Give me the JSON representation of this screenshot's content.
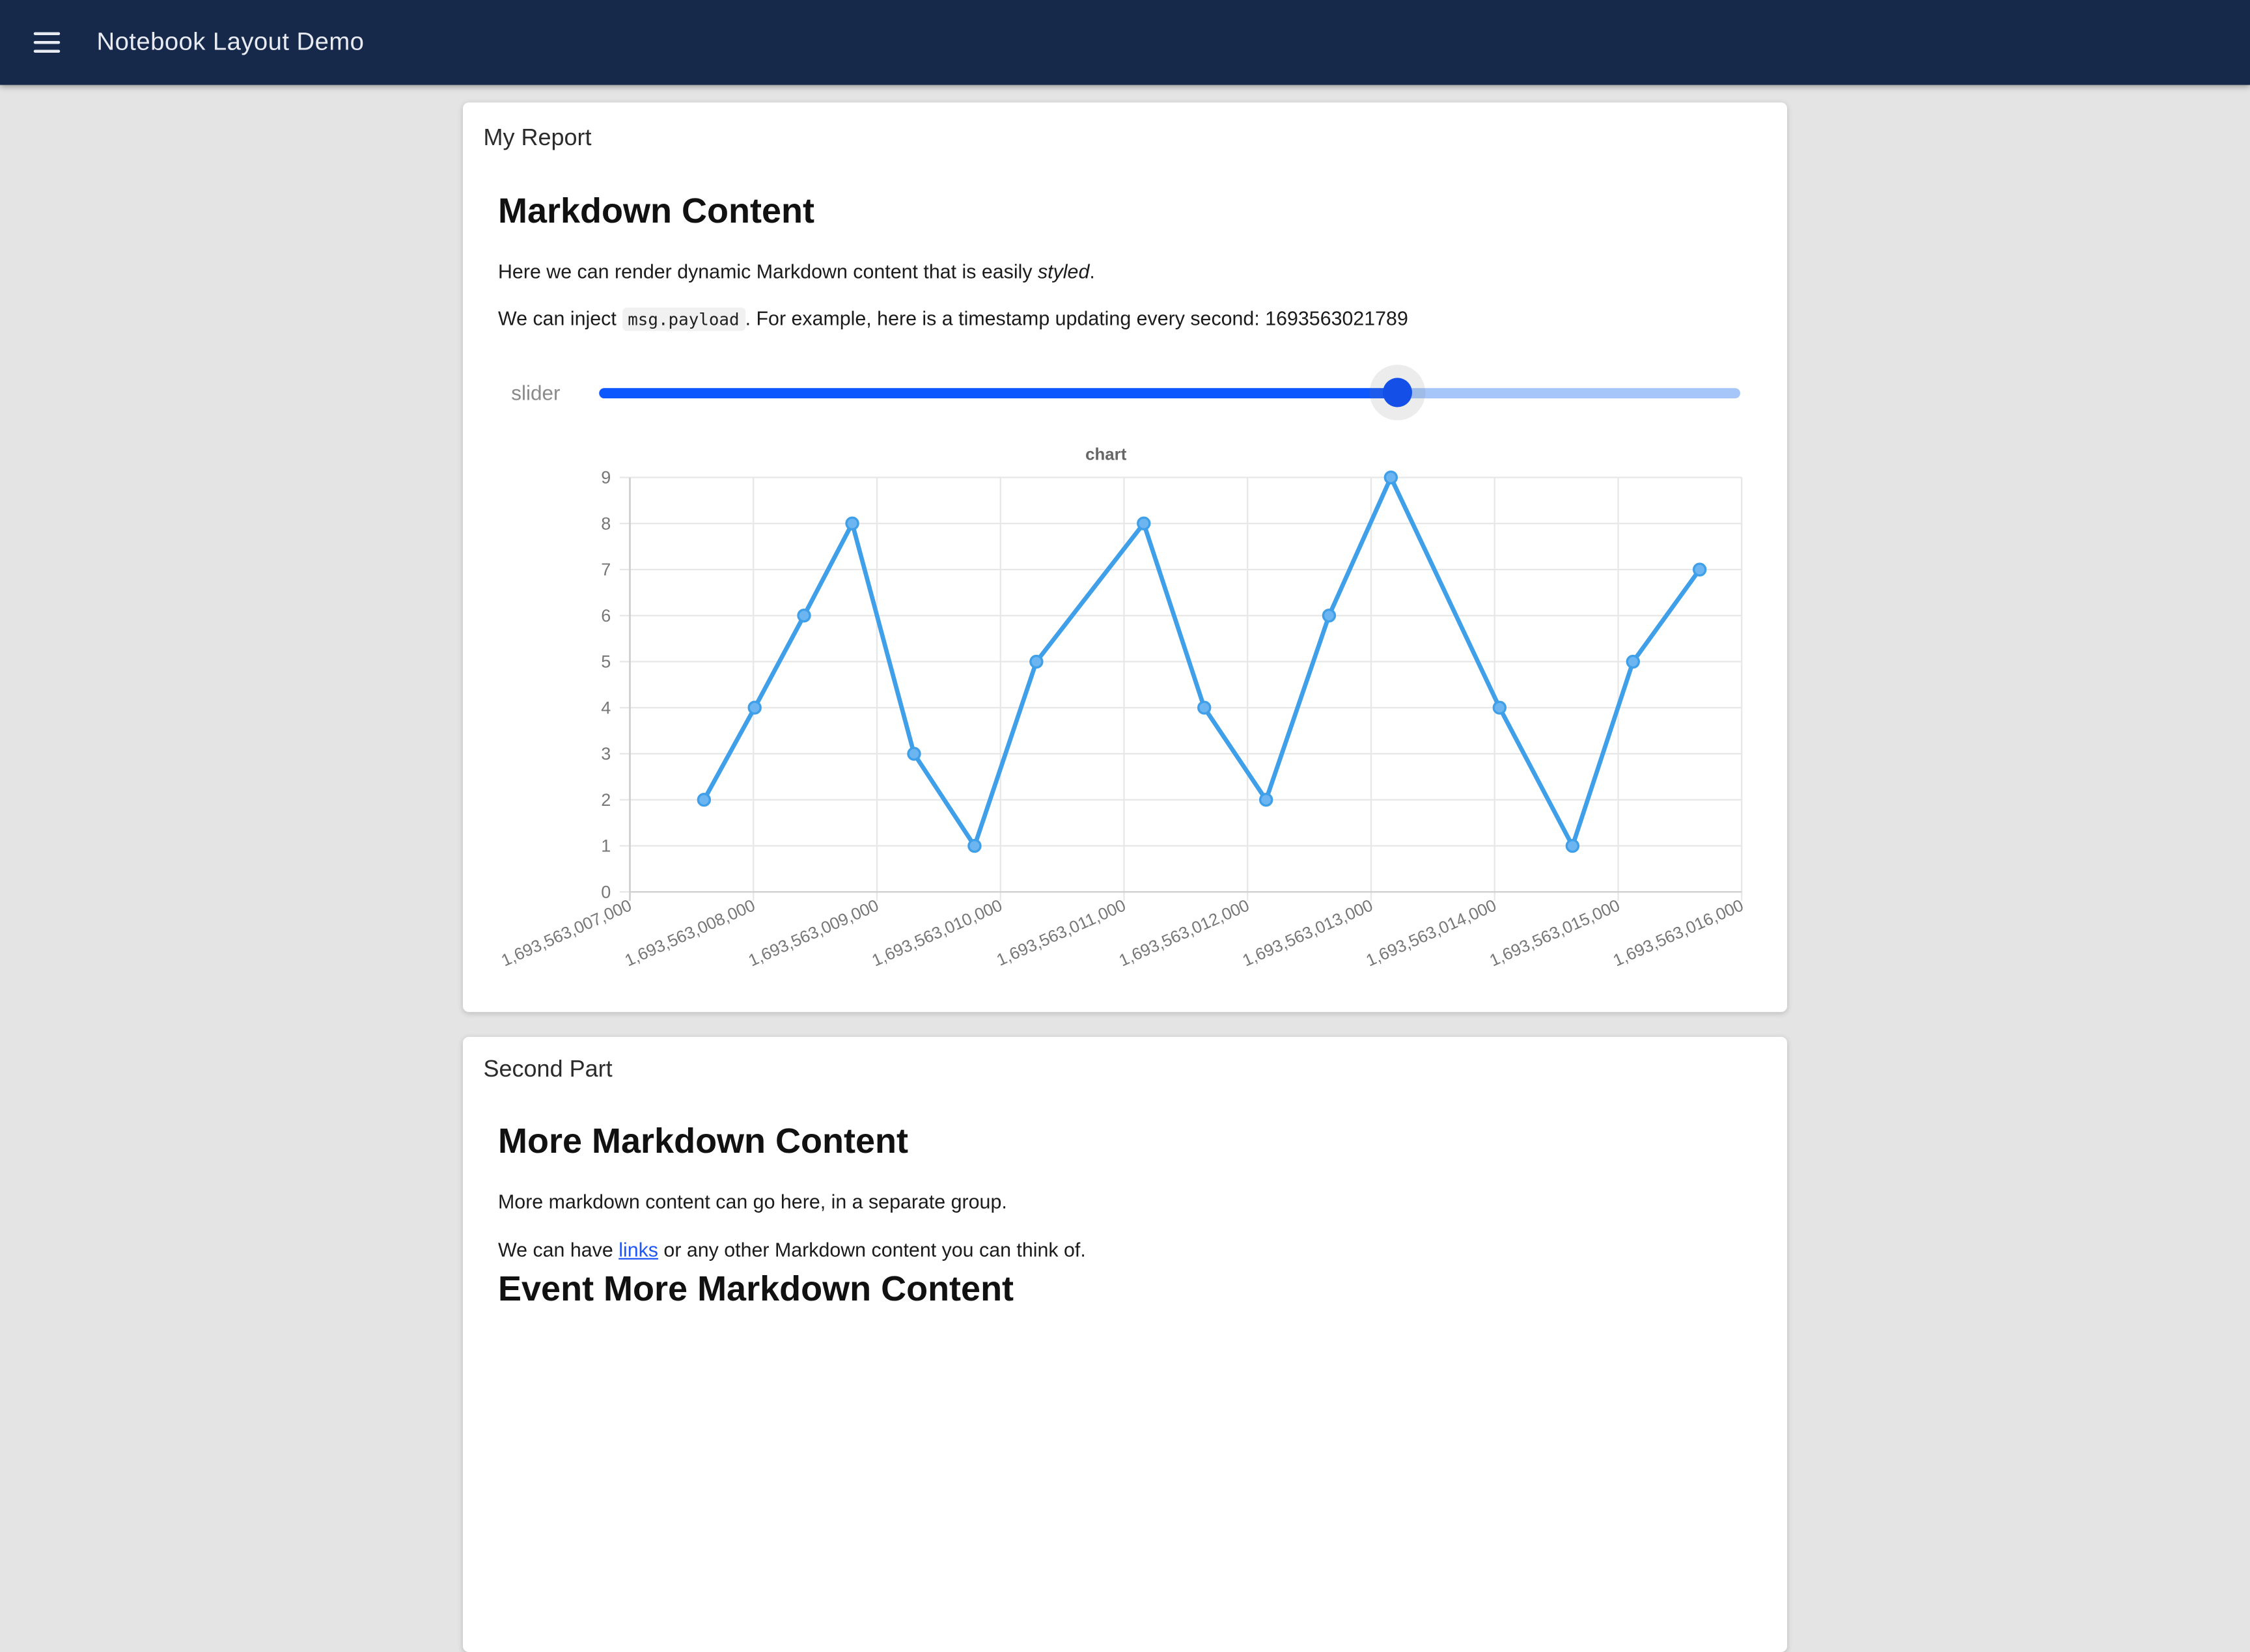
{
  "header": {
    "title": "Notebook Layout Demo",
    "bg_color": "#16294A",
    "text_color": "#E8EBF1"
  },
  "page": {
    "bg_color": "#E4E4E4"
  },
  "report_card": {
    "title": "My Report",
    "heading": "Markdown Content",
    "para1": {
      "pre": "Here we can render dynamic Markdown content that is easily ",
      "italic": "styled",
      "post": "."
    },
    "para2": {
      "pre": "We can inject ",
      "code": "msg.payload",
      "mid": ". For example, here is a timestamp updating every second: ",
      "timestamp": "1693563021789"
    },
    "slider": {
      "label": "slider",
      "percent": 70,
      "fill_color": "#0D57FF",
      "track_color": "#A6C6FA",
      "thumb_color": "#1450E8"
    }
  },
  "chart_data": {
    "type": "line",
    "title": "chart",
    "line_color": "#3F9FE8",
    "point_fill": "#6CB5F0",
    "grid_color": "#E7E7E7",
    "axis_color": "#CFCFCF",
    "tick_color": "#777777",
    "title_color": "#666666",
    "x_min": 1693563007000,
    "x_max": 1693563016000,
    "y_min": 0,
    "y_max": 9,
    "y_ticks": [
      0,
      1,
      2,
      3,
      4,
      5,
      6,
      7,
      8,
      9
    ],
    "x_tick_labels": [
      "1,693,563,007,000",
      "1,693,563,008,000",
      "1,693,563,009,000",
      "1,693,563,010,000",
      "1,693,563,011,000",
      "1,693,563,012,000",
      "1,693,563,013,000",
      "1,693,563,014,000",
      "1,693,563,015,000",
      "1,693,563,016,000"
    ],
    "points": [
      {
        "x": 1693563007600,
        "y": 2
      },
      {
        "x": 1693563008010,
        "y": 4
      },
      {
        "x": 1693563008410,
        "y": 6
      },
      {
        "x": 1693563008800,
        "y": 8
      },
      {
        "x": 1693563009300,
        "y": 3
      },
      {
        "x": 1693563009790,
        "y": 1
      },
      {
        "x": 1693563010290,
        "y": 5
      },
      {
        "x": 1693563011160,
        "y": 8
      },
      {
        "x": 1693563011650,
        "y": 4
      },
      {
        "x": 1693563012150,
        "y": 2
      },
      {
        "x": 1693563012660,
        "y": 6
      },
      {
        "x": 1693563013160,
        "y": 9
      },
      {
        "x": 1693563014040,
        "y": 4
      },
      {
        "x": 1693563014630,
        "y": 1
      },
      {
        "x": 1693563015120,
        "y": 5
      },
      {
        "x": 1693563015660,
        "y": 7
      }
    ]
  },
  "second_card": {
    "title": "Second Part",
    "heading": "More Markdown Content",
    "para1": "More markdown content can go here, in a separate group.",
    "para2": {
      "pre": "We can have ",
      "link": "links",
      "post": " or any other Markdown content you can think of."
    },
    "heading2": "Event More Markdown Content"
  }
}
